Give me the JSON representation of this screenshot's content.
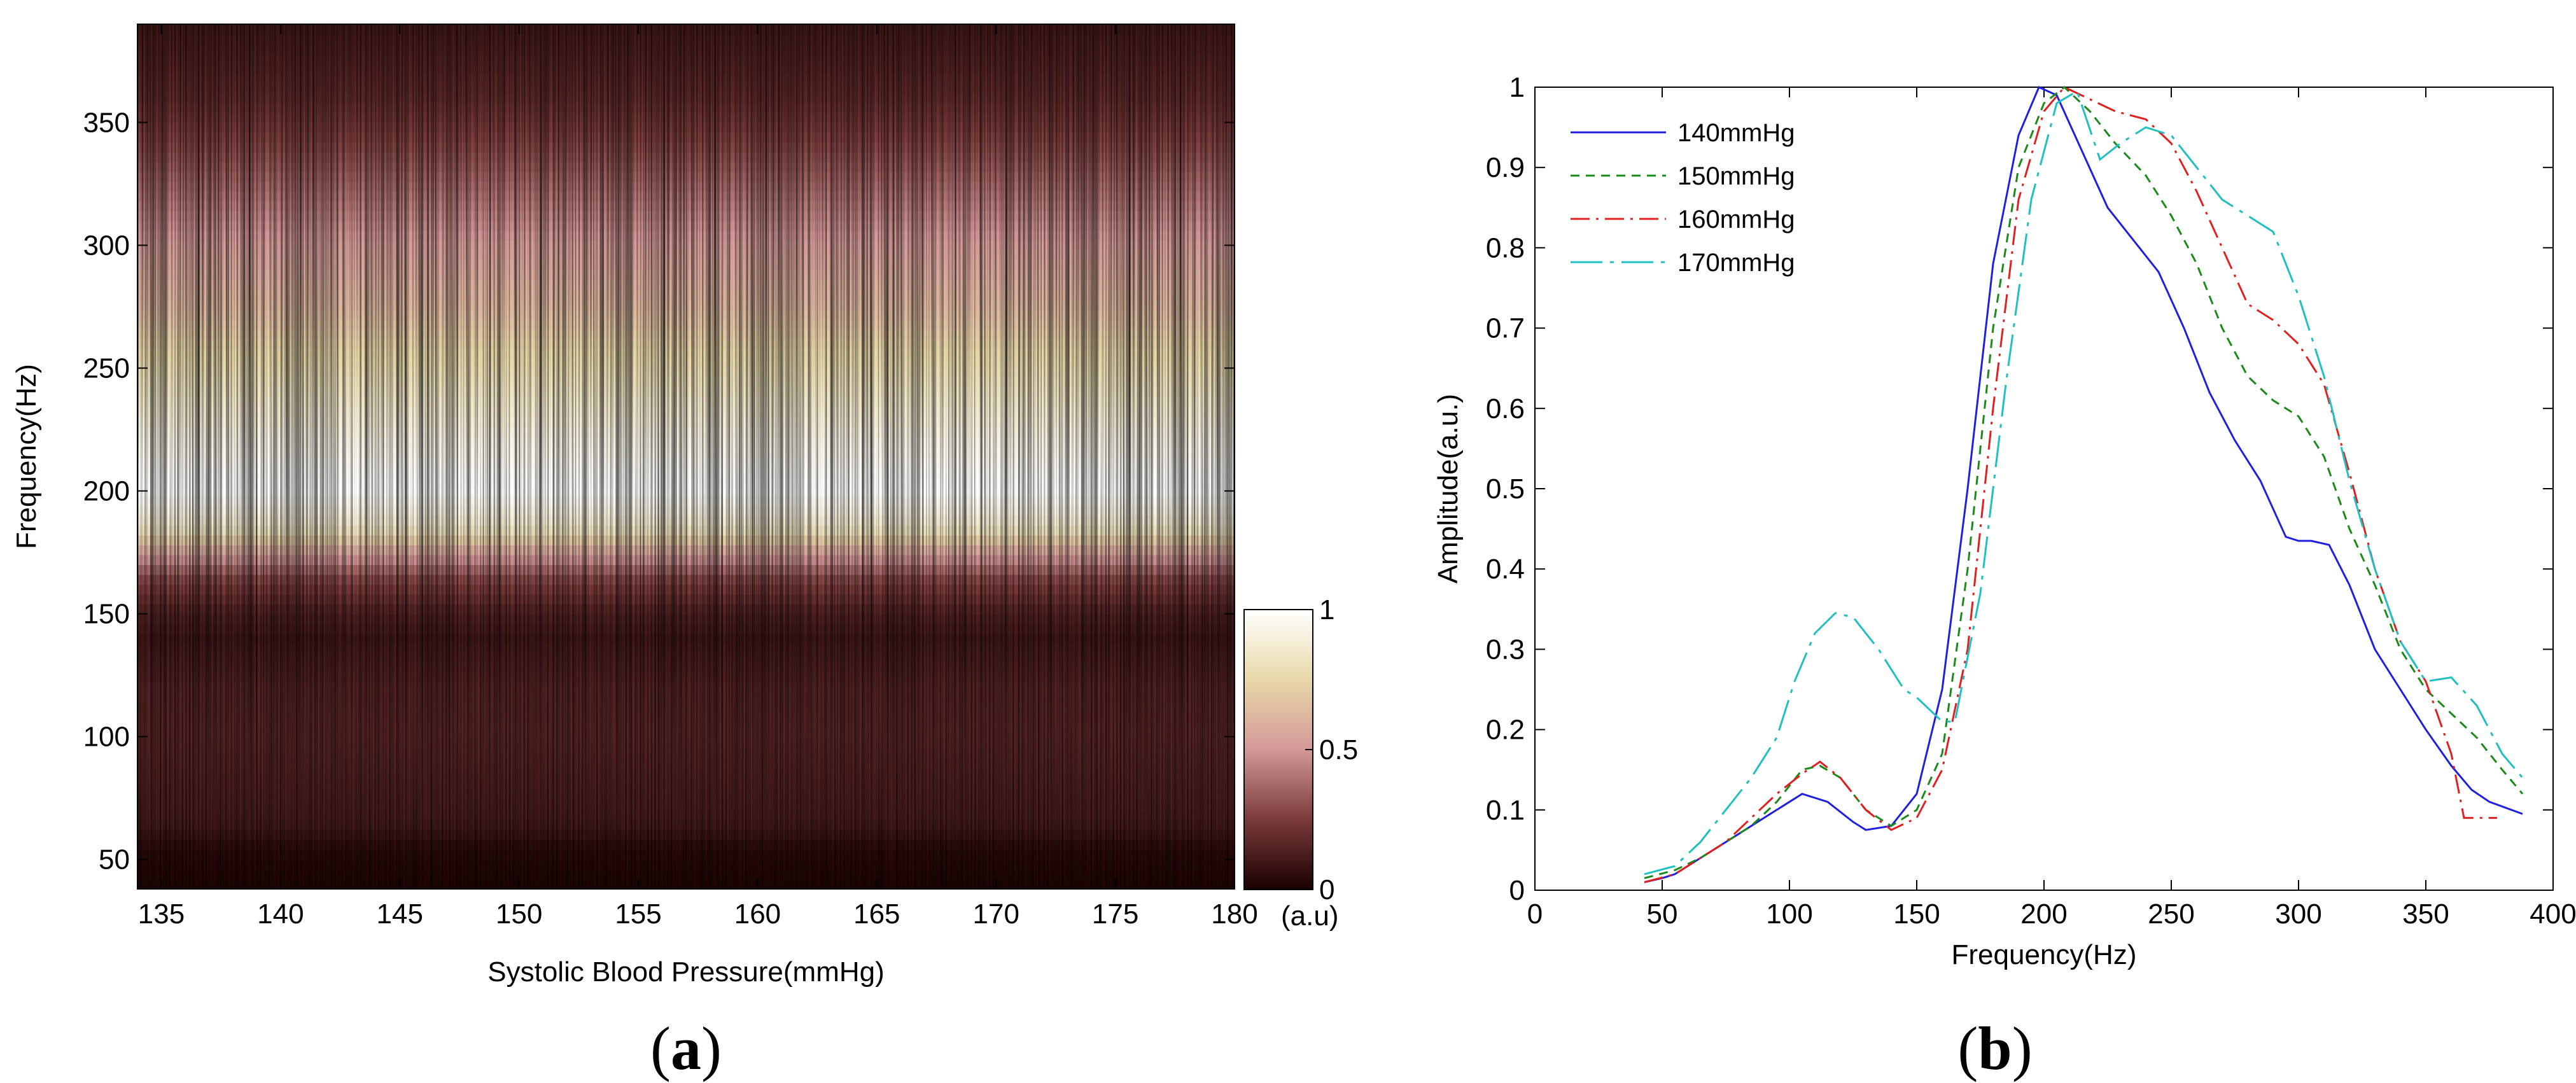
{
  "panels": {
    "a": "a",
    "b": "b"
  },
  "chart_data": [
    {
      "type": "heatmap",
      "panel": "a",
      "xlabel": "Systolic Blood Pressure(mmHg)",
      "ylabel": "Frequency(Hz)",
      "xlim": [
        134,
        180
      ],
      "ylim": [
        38,
        390
      ],
      "xticks": [
        135,
        140,
        145,
        150,
        155,
        160,
        165,
        170,
        175,
        180
      ],
      "yticks": [
        50,
        100,
        150,
        200,
        250,
        300,
        350
      ],
      "colorbar": {
        "min": 0,
        "max": 1,
        "ticks": [
          "0",
          "0.5",
          "1"
        ],
        "unit_label": "(a.u)"
      },
      "frequency_profile": [
        {
          "f": 40,
          "v": 0.02
        },
        {
          "f": 55,
          "v": 0.05
        },
        {
          "f": 65,
          "v": 0.12
        },
        {
          "f": 80,
          "v": 0.14
        },
        {
          "f": 100,
          "v": 0.16
        },
        {
          "f": 120,
          "v": 0.15
        },
        {
          "f": 140,
          "v": 0.1
        },
        {
          "f": 150,
          "v": 0.14
        },
        {
          "f": 165,
          "v": 0.3
        },
        {
          "f": 175,
          "v": 0.55
        },
        {
          "f": 185,
          "v": 0.85
        },
        {
          "f": 200,
          "v": 1.0
        },
        {
          "f": 215,
          "v": 0.95
        },
        {
          "f": 235,
          "v": 0.85
        },
        {
          "f": 255,
          "v": 0.75
        },
        {
          "f": 275,
          "v": 0.62
        },
        {
          "f": 300,
          "v": 0.52
        },
        {
          "f": 320,
          "v": 0.4
        },
        {
          "f": 340,
          "v": 0.28
        },
        {
          "f": 360,
          "v": 0.18
        },
        {
          "f": 390,
          "v": 0.1
        }
      ]
    },
    {
      "type": "line",
      "panel": "b",
      "xlabel": "Frequency(Hz)",
      "ylabel": "Amplitude(a.u.)",
      "xlim": [
        0,
        400
      ],
      "ylim": [
        0,
        1
      ],
      "xticks": [
        0,
        50,
        100,
        150,
        200,
        250,
        300,
        350,
        400
      ],
      "yticks": [
        0,
        0.1,
        0.2,
        0.3,
        0.4,
        0.5,
        0.6,
        0.7,
        0.8,
        0.9,
        1
      ],
      "legend_position": "top-left",
      "series": [
        {
          "name": "140mmHg",
          "color": "#1f1fdf",
          "dash": "",
          "points": [
            [
              43,
              0.01
            ],
            [
              50,
              0.015
            ],
            [
              55,
              0.02
            ],
            [
              60,
              0.03
            ],
            [
              70,
              0.05
            ],
            [
              80,
              0.07
            ],
            [
              90,
              0.09
            ],
            [
              100,
              0.11
            ],
            [
              105,
              0.12
            ],
            [
              115,
              0.11
            ],
            [
              125,
              0.085
            ],
            [
              130,
              0.075
            ],
            [
              140,
              0.08
            ],
            [
              150,
              0.12
            ],
            [
              160,
              0.25
            ],
            [
              170,
              0.5
            ],
            [
              180,
              0.78
            ],
            [
              190,
              0.94
            ],
            [
              198,
              1.0
            ],
            [
              205,
              0.99
            ],
            [
              215,
              0.92
            ],
            [
              225,
              0.85
            ],
            [
              235,
              0.81
            ],
            [
              245,
              0.77
            ],
            [
              255,
              0.7
            ],
            [
              265,
              0.62
            ],
            [
              275,
              0.56
            ],
            [
              285,
              0.51
            ],
            [
              295,
              0.44
            ],
            [
              300,
              0.435
            ],
            [
              305,
              0.435
            ],
            [
              312,
              0.43
            ],
            [
              320,
              0.38
            ],
            [
              330,
              0.3
            ],
            [
              340,
              0.25
            ],
            [
              350,
              0.2
            ],
            [
              360,
              0.155
            ],
            [
              368,
              0.125
            ],
            [
              375,
              0.11
            ],
            [
              388,
              0.095
            ]
          ]
        },
        {
          "name": "150mmHg",
          "color": "#1a8a1a",
          "dash": "14 10",
          "points": [
            [
              43,
              0.015
            ],
            [
              55,
              0.025
            ],
            [
              65,
              0.04
            ],
            [
              75,
              0.06
            ],
            [
              85,
              0.08
            ],
            [
              95,
              0.11
            ],
            [
              105,
              0.15
            ],
            [
              112,
              0.155
            ],
            [
              120,
              0.14
            ],
            [
              130,
              0.1
            ],
            [
              140,
              0.08
            ],
            [
              150,
              0.1
            ],
            [
              160,
              0.17
            ],
            [
              170,
              0.4
            ],
            [
              180,
              0.7
            ],
            [
              190,
              0.9
            ],
            [
              200,
              0.98
            ],
            [
              208,
              1.0
            ],
            [
              218,
              0.97
            ],
            [
              228,
              0.93
            ],
            [
              240,
              0.89
            ],
            [
              250,
              0.84
            ],
            [
              260,
              0.78
            ],
            [
              270,
              0.7
            ],
            [
              280,
              0.64
            ],
            [
              290,
              0.61
            ],
            [
              300,
              0.59
            ],
            [
              310,
              0.54
            ],
            [
              320,
              0.45
            ],
            [
              330,
              0.38
            ],
            [
              340,
              0.3
            ],
            [
              350,
              0.25
            ],
            [
              360,
              0.22
            ],
            [
              370,
              0.19
            ],
            [
              380,
              0.15
            ],
            [
              388,
              0.12
            ]
          ]
        },
        {
          "name": "160mmHg",
          "color": "#e02020",
          "dash": "30 10 4 10",
          "points": [
            [
              43,
              0.01
            ],
            [
              55,
              0.02
            ],
            [
              65,
              0.04
            ],
            [
              75,
              0.06
            ],
            [
              85,
              0.09
            ],
            [
              95,
              0.12
            ],
            [
              105,
              0.145
            ],
            [
              112,
              0.16
            ],
            [
              120,
              0.14
            ],
            [
              130,
              0.1
            ],
            [
              140,
              0.075
            ],
            [
              150,
              0.09
            ],
            [
              160,
              0.15
            ],
            [
              170,
              0.3
            ],
            [
              180,
              0.6
            ],
            [
              190,
              0.86
            ],
            [
              200,
              0.97
            ],
            [
              208,
              1.0
            ],
            [
              218,
              0.985
            ],
            [
              228,
              0.97
            ],
            [
              240,
              0.96
            ],
            [
              250,
              0.93
            ],
            [
              260,
              0.87
            ],
            [
              270,
              0.8
            ],
            [
              280,
              0.73
            ],
            [
              290,
              0.71
            ],
            [
              300,
              0.68
            ],
            [
              310,
              0.63
            ],
            [
              320,
              0.52
            ],
            [
              330,
              0.4
            ],
            [
              340,
              0.31
            ],
            [
              350,
              0.26
            ],
            [
              360,
              0.17
            ],
            [
              365,
              0.09
            ],
            [
              378,
              0.09
            ]
          ]
        },
        {
          "name": "170mmHg",
          "color": "#20c0c0",
          "dash": "50 12 6 12",
          "points": [
            [
              43,
              0.02
            ],
            [
              55,
              0.03
            ],
            [
              65,
              0.06
            ],
            [
              75,
              0.1
            ],
            [
              85,
              0.14
            ],
            [
              95,
              0.19
            ],
            [
              102,
              0.26
            ],
            [
              110,
              0.32
            ],
            [
              118,
              0.345
            ],
            [
              125,
              0.34
            ],
            [
              135,
              0.3
            ],
            [
              145,
              0.25
            ],
            [
              150,
              0.24
            ],
            [
              160,
              0.21
            ],
            [
              165,
              0.21
            ],
            [
              175,
              0.37
            ],
            [
              185,
              0.63
            ],
            [
              195,
              0.86
            ],
            [
              205,
              0.98
            ],
            [
              213,
              0.995
            ],
            [
              222,
              0.91
            ],
            [
              230,
              0.93
            ],
            [
              240,
              0.95
            ],
            [
              250,
              0.94
            ],
            [
              260,
              0.9
            ],
            [
              270,
              0.86
            ],
            [
              280,
              0.84
            ],
            [
              290,
              0.82
            ],
            [
              300,
              0.74
            ],
            [
              310,
              0.64
            ],
            [
              320,
              0.51
            ],
            [
              330,
              0.4
            ],
            [
              340,
              0.31
            ],
            [
              350,
              0.26
            ],
            [
              360,
              0.265
            ],
            [
              370,
              0.23
            ],
            [
              380,
              0.17
            ],
            [
              388,
              0.14
            ]
          ]
        }
      ]
    }
  ]
}
